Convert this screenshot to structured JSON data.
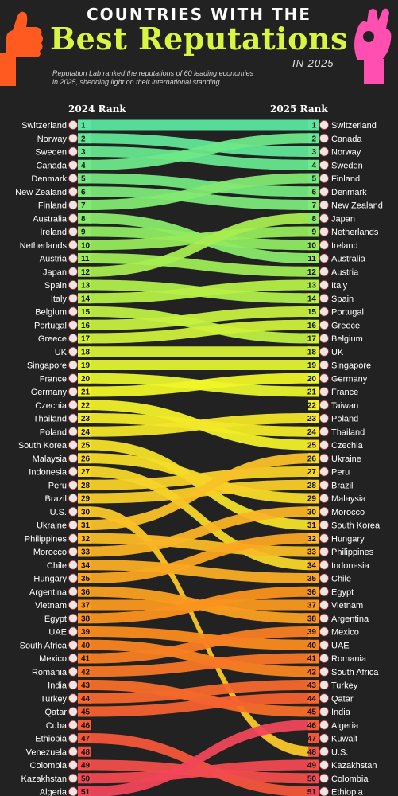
{
  "header": {
    "title_top": "COUNTRIES WITH THE",
    "title_main": "Best Reputations",
    "title_year": "IN 2025",
    "subtitle_line1": "Reputation Lab ranked the reputations of 60 leading economies",
    "subtitle_line2": "in 2025, shedding light on their international standing."
  },
  "chart_data": {
    "type": "bump",
    "left_axis_label": "2024 Rank",
    "right_axis_label": "2025 Rank",
    "countries_2024": [
      "Switzerland",
      "Norway",
      "Sweden",
      "Canada",
      "Denmark",
      "New Zealand",
      "Finland",
      "Australia",
      "Ireland",
      "Netherlands",
      "Austria",
      "Japan",
      "Spain",
      "Italy",
      "Belgium",
      "Portugal",
      "Greece",
      "UK",
      "Singapore",
      "France",
      "Germany",
      "Czechia",
      "Thailand",
      "Poland",
      "South Korea",
      "Malaysia",
      "Indonesia",
      "Peru",
      "Brazil",
      "U.S.",
      "Ukraine",
      "Philippines",
      "Morocco",
      "Chile",
      "Hungary",
      "Argentina",
      "Vietnam",
      "Egypt",
      "UAE",
      "South Africa",
      "Mexico",
      "Romania",
      "India",
      "Turkey",
      "Qatar",
      "Cuba",
      "Ethiopia",
      "Venezuela",
      "Colombia",
      "Kazakhstan",
      "Algeria"
    ],
    "countries_2025": [
      "Switzerland",
      "Canada",
      "Norway",
      "Sweden",
      "Finland",
      "Denmark",
      "New Zealand",
      "Japan",
      "Netherlands",
      "Ireland",
      "Australia",
      "Austria",
      "Italy",
      "Spain",
      "Portugal",
      "Greece",
      "Belgium",
      "UK",
      "Singapore",
      "Germany",
      "France",
      "Taiwan",
      "Poland",
      "Thailand",
      "Czechia",
      "Ukraine",
      "Peru",
      "Brazil",
      "Malaysia",
      "Morocco",
      "South Korea",
      "Hungary",
      "Philippines",
      "Indonesia",
      "Chile",
      "Egypt",
      "Vietnam",
      "Argentina",
      "Mexico",
      "UAE",
      "Romania",
      "South Africa",
      "Turkey",
      "Qatar",
      "India",
      "Algeria",
      "Kuwait",
      "U.S.",
      "Kazakhstan",
      "Colombia",
      "Ethiopia"
    ],
    "ranks": [
      1,
      2,
      3,
      4,
      5,
      6,
      7,
      8,
      9,
      10,
      11,
      12,
      13,
      14,
      15,
      16,
      17,
      18,
      19,
      20,
      21,
      22,
      23,
      24,
      25,
      26,
      27,
      28,
      29,
      30,
      31,
      32,
      33,
      34,
      35,
      36,
      37,
      38,
      39,
      40,
      41,
      42,
      43,
      44,
      45,
      46,
      47,
      48,
      49,
      50,
      51
    ]
  }
}
